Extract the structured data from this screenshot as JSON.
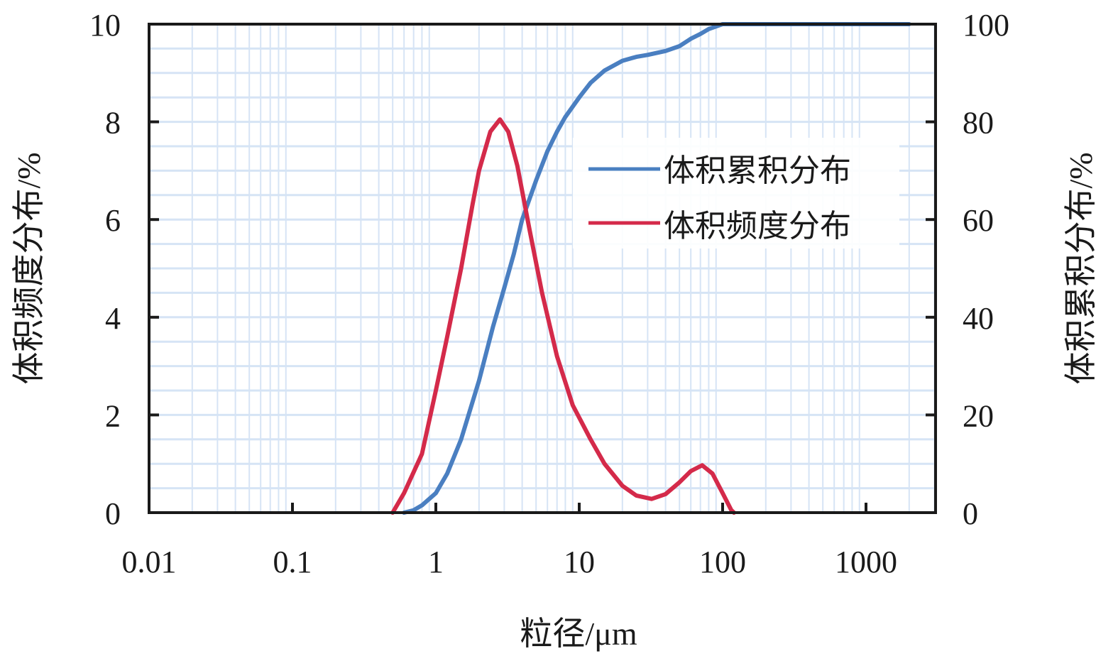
{
  "chart_data": {
    "type": "line",
    "xlabel": "粒径/μm",
    "ylabel_left": "体积频度分布/%",
    "ylabel_right": "体积累积分布/%",
    "x_scale": "log",
    "xlim": [
      0.01,
      2000
    ],
    "ylim_left": [
      0,
      10
    ],
    "ylim_right": [
      0,
      100
    ],
    "x_ticks": [
      0.01,
      0.1,
      1,
      10,
      100,
      1000
    ],
    "x_tick_labels": [
      "0.01",
      "0.1",
      "1",
      "10",
      "100",
      "1000"
    ],
    "y_ticks_left": [
      0,
      2,
      4,
      6,
      8,
      10
    ],
    "y_tick_labels_left": [
      "0",
      "2",
      "4",
      "6",
      "8",
      "10"
    ],
    "y_ticks_right": [
      0,
      20,
      40,
      60,
      80,
      100
    ],
    "y_tick_labels_right": [
      "0",
      "20",
      "40",
      "60",
      "80",
      "100"
    ],
    "grid": true,
    "legend_position": "top-right",
    "series": [
      {
        "name": "体积累积分布",
        "axis": "right",
        "color": "#4a7fc1",
        "points": [
          [
            0.6,
            0
          ],
          [
            0.7,
            0.5
          ],
          [
            0.8,
            1.5
          ],
          [
            1.0,
            4
          ],
          [
            1.2,
            8
          ],
          [
            1.5,
            15
          ],
          [
            2.0,
            27
          ],
          [
            2.5,
            38
          ],
          [
            3.0,
            46
          ],
          [
            3.5,
            53
          ],
          [
            4.0,
            60
          ],
          [
            5.0,
            68
          ],
          [
            6.0,
            74
          ],
          [
            7.0,
            78
          ],
          [
            8.0,
            81
          ],
          [
            10,
            85
          ],
          [
            12,
            88
          ],
          [
            15,
            90.5
          ],
          [
            20,
            92.5
          ],
          [
            25,
            93.3
          ],
          [
            30,
            93.7
          ],
          [
            40,
            94.5
          ],
          [
            50,
            95.5
          ],
          [
            60,
            97
          ],
          [
            70,
            98
          ],
          [
            80,
            99
          ],
          [
            100,
            100
          ],
          [
            200,
            100
          ],
          [
            500,
            100
          ],
          [
            1000,
            100
          ],
          [
            2000,
            100
          ]
        ]
      },
      {
        "name": "体积频度分布",
        "axis": "left",
        "color": "#d42a4a",
        "points": [
          [
            0.5,
            0
          ],
          [
            0.6,
            0.4
          ],
          [
            0.8,
            1.2
          ],
          [
            1.0,
            2.5
          ],
          [
            1.2,
            3.6
          ],
          [
            1.5,
            5.0
          ],
          [
            1.8,
            6.3
          ],
          [
            2.0,
            7.0
          ],
          [
            2.4,
            7.8
          ],
          [
            2.8,
            8.05
          ],
          [
            3.2,
            7.8
          ],
          [
            3.7,
            7.1
          ],
          [
            4.5,
            5.8
          ],
          [
            5.5,
            4.5
          ],
          [
            7.0,
            3.2
          ],
          [
            9.0,
            2.2
          ],
          [
            12,
            1.5
          ],
          [
            15,
            1.0
          ],
          [
            20,
            0.55
          ],
          [
            25,
            0.35
          ],
          [
            32,
            0.28
          ],
          [
            40,
            0.38
          ],
          [
            50,
            0.62
          ],
          [
            60,
            0.85
          ],
          [
            72,
            0.97
          ],
          [
            85,
            0.8
          ],
          [
            100,
            0.4
          ],
          [
            115,
            0.05
          ],
          [
            120,
            0
          ]
        ]
      }
    ]
  }
}
